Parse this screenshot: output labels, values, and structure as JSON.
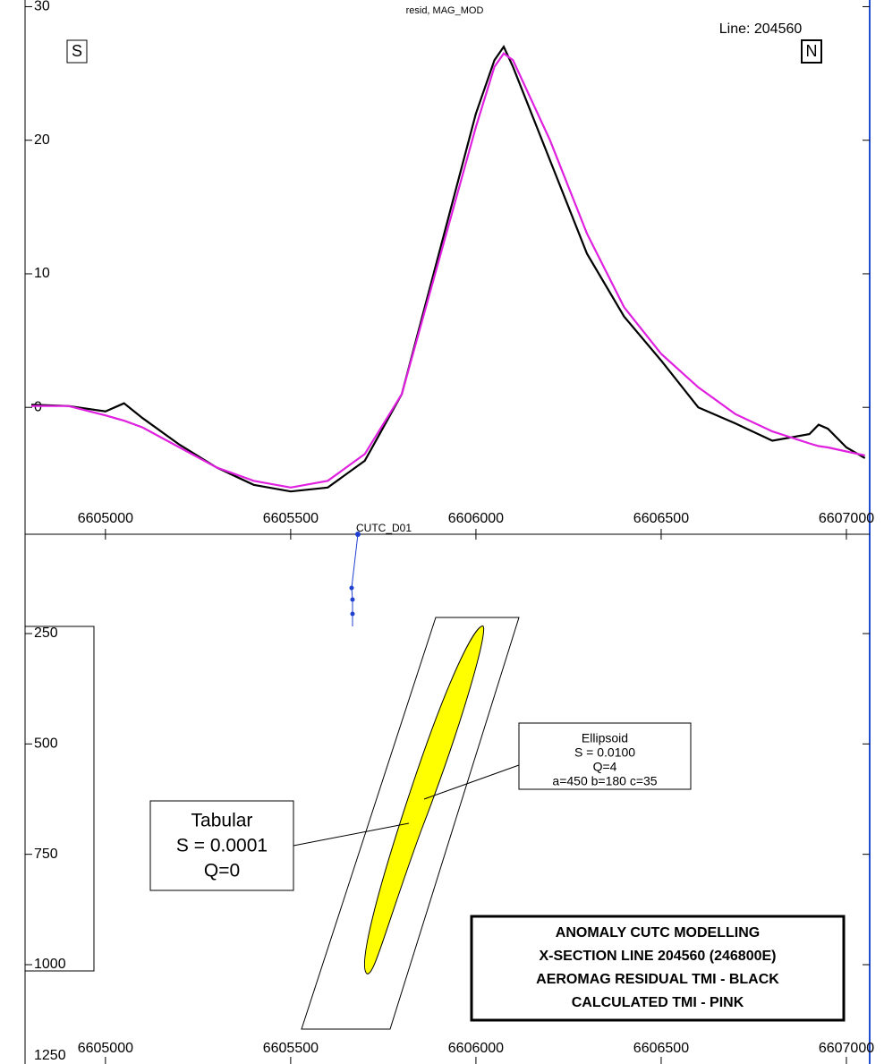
{
  "chart_data": [
    {
      "type": "line",
      "title": "resid, MAG_MOD",
      "x": [
        6604800,
        6604900,
        6605000,
        6605050,
        6605100,
        6605200,
        6605300,
        6605400,
        6605500,
        6605600,
        6605700,
        6605800,
        6605900,
        6606000,
        6606050,
        6606075,
        6606100,
        6606200,
        6606300,
        6606400,
        6606500,
        6606600,
        6606700,
        6606800,
        6606900,
        6606925,
        6606950,
        6607000,
        6607050
      ],
      "series": [
        {
          "color": "#000000",
          "values": [
            0.2,
            0.1,
            -0.3,
            0.3,
            -0.8,
            -2.8,
            -4.5,
            -5.8,
            -6.3,
            -6.0,
            -4.0,
            1.0,
            11.5,
            22,
            26,
            27,
            25.5,
            18.5,
            11.5,
            6.8,
            3.5,
            0,
            -1.2,
            -2.5,
            -2.0,
            -1.3,
            -1.6,
            -3.0,
            -3.8
          ]
        },
        {
          "color": "#e020e0",
          "values": [
            0.1,
            0.1,
            -0.6,
            -1.0,
            -1.5,
            -3.0,
            -4.5,
            -5.5,
            -6.0,
            -5.5,
            -3.5,
            1.0,
            11,
            21,
            25.5,
            26.5,
            26,
            20,
            13,
            7.5,
            4,
            1.5,
            -0.5,
            -1.8,
            -2.7,
            -2.9,
            -3.0,
            -3.3,
            -3.6
          ]
        }
      ],
      "xlim": [
        6604783,
        6607058
      ],
      "xticks": [
        6605000,
        6605500,
        6606000,
        6606500,
        6607000
      ],
      "ylim": [
        -9.5,
        30.5
      ],
      "yticks": [
        0,
        10,
        20,
        30
      ],
      "annotations": {
        "south": "S",
        "north": "N",
        "line": "Line: 204560"
      }
    },
    {
      "type": "section",
      "xlim": [
        6604783,
        6607058
      ],
      "xticks": [
        6605000,
        6605500,
        6606000,
        6606500,
        6607000
      ],
      "ylim": [
        25,
        1225
      ],
      "yticks": [
        250,
        500,
        750,
        1000,
        1250
      ],
      "y_reversed": true,
      "drillhole": "CUTC_D01",
      "ellipsoid": [
        "Ellipsoid",
        "S = 0.0100",
        "Q=4",
        "a=450 b=180 c=35"
      ],
      "tabular": [
        "Tabular",
        "S = 0.0001",
        "Q=0"
      ],
      "legend": [
        "ANOMALY CUTC  MODELLING",
        "X-SECTION LINE 204560 (246800E)",
        "AEROMAG RESIDUAL TMI - BLACK",
        "CALCULATED TMI - PINK"
      ]
    }
  ]
}
